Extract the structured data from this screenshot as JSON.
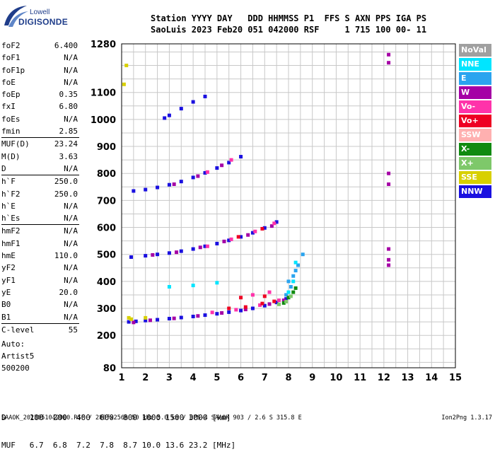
{
  "logo": {
    "line1": "Lowell",
    "line2": "DIGISONDE"
  },
  "header": {
    "line1": "Station YYYY DAY   DDD HHMMSS P1  FFS S AXN PPS IGA PS",
    "line2": "SaoLuis 2023 Feb20 051 042000 RSF     1 715 100 00- 11"
  },
  "params": [
    {
      "label": "foF2",
      "value": "6.400"
    },
    {
      "label": "foF1",
      "value": "N/A"
    },
    {
      "label": "foF1p",
      "value": "N/A"
    },
    {
      "label": "foE",
      "value": "N/A"
    },
    {
      "label": "foEp",
      "value": "0.35"
    },
    {
      "label": "fxI",
      "value": "6.80"
    },
    {
      "label": "foEs",
      "value": "N/A"
    },
    {
      "label": "fmin",
      "value": "2.85"
    },
    {
      "label": "MUF(D)",
      "value": "23.24"
    },
    {
      "label": "M(D)",
      "value": "3.63"
    },
    {
      "label": "D",
      "value": "N/A"
    },
    {
      "label": "h`F",
      "value": "250.0"
    },
    {
      "label": "h`F2",
      "value": "250.0"
    },
    {
      "label": "h`E",
      "value": "N/A"
    },
    {
      "label": "h`Es",
      "value": "N/A"
    },
    {
      "label": "hmF2",
      "value": "N/A"
    },
    {
      "label": "hmF1",
      "value": "N/A"
    },
    {
      "label": "hmE",
      "value": "110.0"
    },
    {
      "label": "yF2",
      "value": "N/A"
    },
    {
      "label": "yF1",
      "value": "N/A"
    },
    {
      "label": "yE",
      "value": "20.0"
    },
    {
      "label": "B0",
      "value": "N/A"
    },
    {
      "label": "B1",
      "value": "N/A"
    },
    {
      "label": "C-level",
      "value": "55"
    }
  ],
  "auto": {
    "line1": "Auto:",
    "line2": "Artist5",
    "line3": "500200"
  },
  "legend": [
    {
      "label": "NoVal",
      "color": "#a0a0a0"
    },
    {
      "label": "NNE",
      "color": "#00e5ff"
    },
    {
      "label": "E",
      "color": "#2aa4ef"
    },
    {
      "label": "W",
      "color": "#a500a5"
    },
    {
      "label": "Vo-",
      "color": "#ff33aa"
    },
    {
      "label": "Vo+",
      "color": "#ee0022"
    },
    {
      "label": "SSW",
      "color": "#ffb0b0"
    },
    {
      "label": "X-",
      "color": "#108a10"
    },
    {
      "label": "X+",
      "color": "#7ec86a"
    },
    {
      "label": "SSE",
      "color": "#d8d000"
    },
    {
      "label": "NNW",
      "color": "#1a10e0"
    }
  ],
  "dm_table": {
    "d_line": "D     100  200  400  600  800 1000 1500 3000 [km]",
    "muf_line": "MUF   6.7  6.8  7.2  7.8  8.7 10.0 13.6 23.2 [MHz]"
  },
  "footer": "SAAOK_2023051042000.RSF / 280fx256h 50 kHz 5.0 km / DPS-4 SAAOK 903 / 2.6 S 315.8 E",
  "version": "Ion2Png 1.3.17",
  "chart_data": {
    "type": "scatter",
    "xlim": [
      1,
      15
    ],
    "ylim": [
      80,
      1280
    ],
    "x_ticks": [
      1,
      2,
      3,
      4,
      5,
      6,
      7,
      8,
      9,
      10,
      11,
      12,
      13,
      14,
      15
    ],
    "y_ticks": [
      80,
      200,
      300,
      400,
      500,
      600,
      700,
      800,
      900,
      1000,
      1100,
      1280
    ],
    "grid": true,
    "series": [
      {
        "color": "#1a10e0",
        "points": [
          [
            1.3,
            250
          ],
          [
            1.6,
            252
          ],
          [
            2.0,
            255
          ],
          [
            2.5,
            258
          ],
          [
            3.0,
            262
          ],
          [
            3.5,
            266
          ],
          [
            4.0,
            270
          ],
          [
            4.5,
            275
          ],
          [
            5.0,
            280
          ],
          [
            5.5,
            286
          ],
          [
            6.0,
            292
          ],
          [
            6.5,
            300
          ],
          [
            7.0,
            310
          ],
          [
            7.5,
            322
          ],
          [
            7.9,
            335
          ],
          [
            1.4,
            490
          ],
          [
            2.0,
            495
          ],
          [
            2.5,
            500
          ],
          [
            3.0,
            505
          ],
          [
            3.5,
            512
          ],
          [
            4.0,
            520
          ],
          [
            4.5,
            530
          ],
          [
            5.0,
            540
          ],
          [
            5.5,
            552
          ],
          [
            6.0,
            565
          ],
          [
            6.5,
            580
          ],
          [
            7.0,
            598
          ],
          [
            7.5,
            620
          ],
          [
            1.5,
            735
          ],
          [
            2.0,
            740
          ],
          [
            2.5,
            748
          ],
          [
            3.0,
            758
          ],
          [
            3.5,
            770
          ],
          [
            4.0,
            785
          ],
          [
            4.5,
            802
          ],
          [
            5.0,
            820
          ],
          [
            5.5,
            840
          ],
          [
            6.0,
            862
          ],
          [
            2.8,
            1005
          ],
          [
            3.0,
            1015
          ],
          [
            3.5,
            1040
          ],
          [
            4.0,
            1065
          ],
          [
            4.5,
            1085
          ]
        ]
      },
      {
        "color": "#a500a5",
        "points": [
          [
            1.5,
            248
          ],
          [
            2.2,
            256
          ],
          [
            3.2,
            263
          ],
          [
            4.2,
            272
          ],
          [
            5.2,
            283
          ],
          [
            6.2,
            296
          ],
          [
            7.2,
            316
          ],
          [
            7.8,
            330
          ],
          [
            2.3,
            498
          ],
          [
            3.3,
            508
          ],
          [
            4.3,
            526
          ],
          [
            5.3,
            548
          ],
          [
            6.3,
            572
          ],
          [
            7.3,
            605
          ],
          [
            3.2,
            760
          ],
          [
            4.2,
            790
          ],
          [
            5.2,
            830
          ],
          [
            12.2,
            1210
          ],
          [
            12.2,
            1240
          ],
          [
            12.2,
            800
          ],
          [
            12.2,
            760
          ],
          [
            12.2,
            480
          ],
          [
            12.2,
            520
          ],
          [
            12.2,
            460
          ]
        ]
      },
      {
        "color": "#ff33aa",
        "points": [
          [
            4.8,
            285
          ],
          [
            5.8,
            295
          ],
          [
            6.8,
            312
          ],
          [
            7.6,
            330
          ],
          [
            6.5,
            350
          ],
          [
            7.2,
            360
          ],
          [
            4.6,
            530
          ],
          [
            5.6,
            556
          ],
          [
            6.6,
            585
          ],
          [
            7.4,
            615
          ],
          [
            4.6,
            805
          ],
          [
            5.6,
            850
          ]
        ]
      },
      {
        "color": "#ee0022",
        "points": [
          [
            5.5,
            300
          ],
          [
            6.2,
            305
          ],
          [
            6.9,
            318
          ],
          [
            7.4,
            326
          ],
          [
            6.0,
            340
          ],
          [
            7.0,
            345
          ],
          [
            5.9,
            565
          ],
          [
            6.9,
            595
          ]
        ]
      },
      {
        "color": "#2aa4ef",
        "points": [
          [
            7.9,
            350
          ],
          [
            8.1,
            380
          ],
          [
            8.2,
            420
          ],
          [
            8.4,
            460
          ],
          [
            8.6,
            500
          ],
          [
            8.0,
            400
          ],
          [
            8.3,
            440
          ]
        ]
      },
      {
        "color": "#00e5ff",
        "points": [
          [
            8.0,
            360
          ],
          [
            8.2,
            400
          ],
          [
            8.3,
            470
          ],
          [
            3.0,
            380
          ],
          [
            4.0,
            385
          ],
          [
            5.0,
            395
          ]
        ]
      },
      {
        "color": "#108a10",
        "points": [
          [
            8.0,
            340
          ],
          [
            8.2,
            360
          ],
          [
            8.3,
            375
          ],
          [
            7.8,
            320
          ]
        ]
      },
      {
        "color": "#7ec86a",
        "points": [
          [
            7.6,
            315
          ],
          [
            7.9,
            325
          ],
          [
            8.1,
            345
          ]
        ]
      },
      {
        "color": "#d8d000",
        "points": [
          [
            1.3,
            265
          ],
          [
            1.4,
            260
          ],
          [
            2.0,
            265
          ],
          [
            1.1,
            1130
          ],
          [
            1.2,
            1200
          ]
        ]
      }
    ]
  }
}
